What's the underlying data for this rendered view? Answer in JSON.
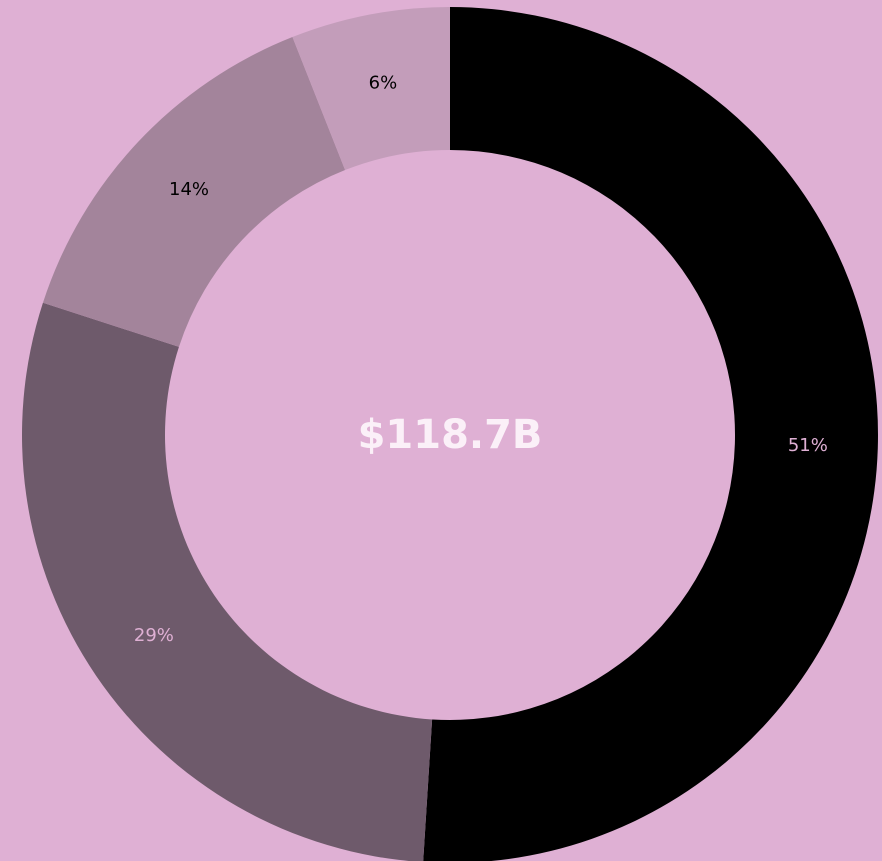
{
  "chart_data": {
    "type": "donut",
    "center_text": "$118.7B",
    "values": [
      51,
      29,
      14,
      6
    ],
    "value_labels": [
      "51%",
      "29%",
      "14%",
      "6%"
    ],
    "colors": [
      "#000000",
      "#6e5a6b",
      "#a3849b",
      "#c39dba"
    ],
    "label_colors": [
      "#dfb0d4",
      "#dfb0d4",
      "#000000",
      "#000000"
    ],
    "background": "#dfb0d4",
    "center_text_color": "#fbf0f8"
  }
}
